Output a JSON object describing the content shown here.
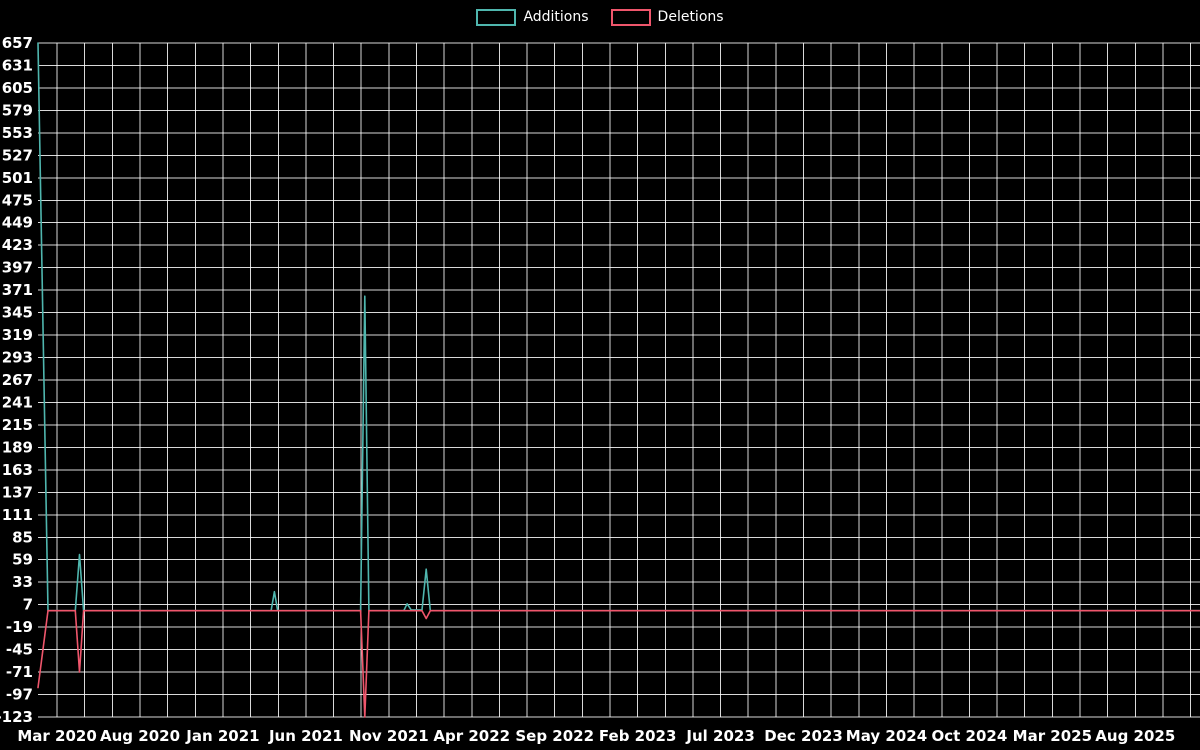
{
  "page": {
    "background": "#000000",
    "text_color": "#ffffff"
  },
  "legend": {
    "items": [
      {
        "label": "Additions",
        "color": "#4fb6ae"
      },
      {
        "label": "Deletions",
        "color": "#ef566c"
      }
    ]
  },
  "chart_data": {
    "type": "line",
    "title": "",
    "xlabel": "",
    "ylabel": "",
    "legend_position": "top-center",
    "grid": {
      "on": true,
      "color": "#ffffff",
      "opacity": 0.85
    },
    "x_axis": {
      "tick_labels": [
        "Mar 2020",
        "Aug 2020",
        "Jan 2021",
        "Jun 2021",
        "Nov 2021",
        "Apr 2022",
        "Sep 2022",
        "Feb 2023",
        "Jul 2023",
        "Dec 2023",
        "May 2024",
        "Oct 2024",
        "Mar 2025",
        "Aug 2025"
      ],
      "months_between_labels": 5,
      "gridline_subdivisions_per_label_gap": 3,
      "range_months": [
        -1.15,
        68.9
      ]
    },
    "y_axis": {
      "ticks": [
        657,
        631,
        605,
        579,
        553,
        527,
        501,
        475,
        449,
        423,
        397,
        371,
        345,
        319,
        293,
        267,
        241,
        215,
        189,
        163,
        137,
        111,
        85,
        59,
        33,
        7,
        -19,
        -45,
        -71,
        -97,
        -123
      ],
      "range": [
        -123,
        657
      ]
    },
    "series": [
      {
        "name": "Additions",
        "color": "#4fb6ae",
        "points": [
          [
            -1.15,
            657
          ],
          [
            -0.55,
            0
          ],
          [
            1.1,
            0
          ],
          [
            1.35,
            65
          ],
          [
            1.6,
            0
          ],
          [
            12.9,
            0
          ],
          [
            13.1,
            22
          ],
          [
            13.3,
            0
          ],
          [
            18.3,
            0
          ],
          [
            18.55,
            364
          ],
          [
            18.8,
            0
          ],
          [
            20.9,
            0
          ],
          [
            21.1,
            8
          ],
          [
            21.35,
            1
          ],
          [
            22.0,
            1
          ],
          [
            22.25,
            48
          ],
          [
            22.5,
            0
          ],
          [
            68.9,
            0
          ]
        ]
      },
      {
        "name": "Deletions",
        "color": "#ef566c",
        "points": [
          [
            -1.15,
            -89
          ],
          [
            -0.55,
            0
          ],
          [
            1.1,
            0
          ],
          [
            1.35,
            -71
          ],
          [
            1.6,
            0
          ],
          [
            18.3,
            0
          ],
          [
            18.55,
            -123
          ],
          [
            18.8,
            0
          ],
          [
            22.0,
            0
          ],
          [
            22.25,
            -9
          ],
          [
            22.5,
            0
          ],
          [
            68.9,
            0
          ]
        ]
      }
    ]
  }
}
